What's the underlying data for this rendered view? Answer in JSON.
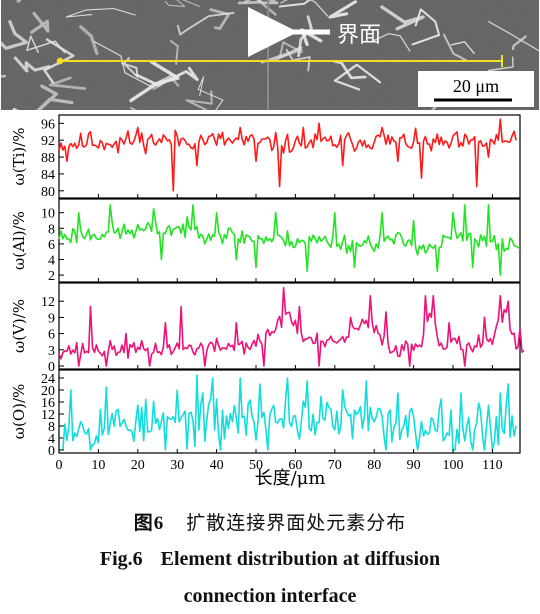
{
  "micrograph": {
    "interface_label": "界面",
    "scale_bar_label": "20 μm"
  },
  "shared_x_axis": {
    "label": "长度/μm",
    "range": [
      0,
      117
    ],
    "ticks": [
      0,
      10,
      20,
      30,
      40,
      50,
      60,
      70,
      80,
      90,
      100,
      110
    ]
  },
  "caption": {
    "cn_prefix": "图6",
    "cn_text": "扩散连接界面处元素分布",
    "en_line1_prefix": "Fig.6",
    "en_line1_text": "Element distribution at diffusion",
    "en_line2": "connection interface"
  },
  "colors": {
    "Ti": "#ff1a1a",
    "Al": "#22e422",
    "V": "#ee1177",
    "O": "#11dddd",
    "scan_line": "#f2e01c",
    "micrograph_bg": "#6e6e6e"
  },
  "chart_data": [
    {
      "type": "line",
      "element": "Ti",
      "ylabel": "ω(Ti)/%",
      "ylim": [
        79,
        97.5
      ],
      "yticks": [
        80,
        84,
        88,
        92,
        96
      ],
      "x_step": 0.5,
      "x_range": [
        0,
        116
      ],
      "noise": 2.2,
      "seed": 11,
      "anchors": [
        [
          0,
          91
        ],
        [
          20,
          92
        ],
        [
          40,
          92
        ],
        [
          60,
          91
        ],
        [
          80,
          92
        ],
        [
          100,
          91
        ],
        [
          116,
          92
        ]
      ],
      "spikes": [
        [
          2,
          87
        ],
        [
          8,
          94
        ],
        [
          15,
          89
        ],
        [
          20,
          95
        ],
        [
          29,
          80
        ],
        [
          35,
          86
        ],
        [
          46,
          95
        ],
        [
          50,
          87
        ],
        [
          56,
          81
        ],
        [
          62,
          95
        ],
        [
          66,
          96
        ],
        [
          72,
          86
        ],
        [
          82,
          95
        ],
        [
          86,
          87
        ],
        [
          92,
          83
        ],
        [
          101,
          94
        ],
        [
          106,
          81
        ],
        [
          109,
          88
        ],
        [
          112,
          97
        ],
        [
          115,
          93
        ]
      ]
    },
    {
      "type": "line",
      "element": "Al",
      "ylabel": "ω(Al)/%",
      "ylim": [
        1.5,
        11.5
      ],
      "yticks": [
        2,
        4,
        6,
        8,
        10
      ],
      "x_step": 0.5,
      "x_range": [
        0,
        117
      ],
      "noise": 1.1,
      "seed": 23,
      "anchors": [
        [
          0,
          7
        ],
        [
          15,
          7.5
        ],
        [
          30,
          8
        ],
        [
          45,
          7
        ],
        [
          55,
          6.5
        ],
        [
          65,
          6.5
        ],
        [
          75,
          6
        ],
        [
          85,
          6.5
        ],
        [
          95,
          5.5
        ],
        [
          100,
          7
        ],
        [
          110,
          6
        ],
        [
          117,
          6
        ]
      ],
      "spikes": [
        [
          5,
          10
        ],
        [
          13,
          11
        ],
        [
          24,
          10.5
        ],
        [
          26,
          4
        ],
        [
          34,
          11
        ],
        [
          40,
          10
        ],
        [
          45,
          4
        ],
        [
          50,
          3
        ],
        [
          55,
          10
        ],
        [
          63,
          2.5
        ],
        [
          70,
          10
        ],
        [
          75,
          3
        ],
        [
          82,
          10
        ],
        [
          90,
          9
        ],
        [
          96,
          2.5
        ],
        [
          100,
          10
        ],
        [
          103,
          11
        ],
        [
          105,
          3
        ],
        [
          109,
          11
        ],
        [
          112,
          2
        ]
      ]
    },
    {
      "type": "line",
      "element": "V",
      "ylabel": "ω(V)/%",
      "ylim": [
        0,
        15
      ],
      "yticks": [
        0,
        3,
        6,
        9,
        12
      ],
      "x_step": 0.5,
      "x_range": [
        0,
        118
      ],
      "noise": 1.4,
      "seed": 37,
      "anchors": [
        [
          0,
          3
        ],
        [
          20,
          3
        ],
        [
          40,
          3.5
        ],
        [
          50,
          4
        ],
        [
          55,
          7
        ],
        [
          58,
          10
        ],
        [
          62,
          5
        ],
        [
          70,
          4
        ],
        [
          78,
          8
        ],
        [
          85,
          3
        ],
        [
          92,
          4
        ],
        [
          94,
          11
        ],
        [
          97,
          4
        ],
        [
          105,
          4
        ],
        [
          110,
          5
        ],
        [
          113,
          10
        ],
        [
          116,
          3
        ],
        [
          118,
          3
        ]
      ],
      "spikes": [
        [
          5,
          0
        ],
        [
          8,
          11
        ],
        [
          12,
          0
        ],
        [
          17,
          6
        ],
        [
          23,
          0
        ],
        [
          27,
          8
        ],
        [
          31,
          11
        ],
        [
          37,
          0
        ],
        [
          45,
          8
        ],
        [
          52,
          0
        ],
        [
          57,
          14.5
        ],
        [
          61,
          11
        ],
        [
          66,
          0
        ],
        [
          74,
          9
        ],
        [
          79,
          13
        ],
        [
          83,
          10
        ],
        [
          89,
          0
        ],
        [
          93,
          13
        ],
        [
          95,
          13
        ],
        [
          99,
          8
        ],
        [
          103,
          0
        ],
        [
          108,
          9
        ],
        [
          112,
          13
        ],
        [
          114,
          12
        ],
        [
          117,
          7
        ]
      ]
    },
    {
      "type": "line",
      "element": "O",
      "ylabel": "ω(O)/%",
      "ylim": [
        0,
        26
      ],
      "yticks": [
        0,
        4,
        8,
        12,
        16,
        20,
        24
      ],
      "x_step": 0.5,
      "x_range": [
        1,
        116
      ],
      "noise": 7.0,
      "seed": 53,
      "anchors": [
        [
          1,
          8
        ],
        [
          20,
          9
        ],
        [
          30,
          9
        ],
        [
          40,
          10
        ],
        [
          60,
          11
        ],
        [
          80,
          9
        ],
        [
          100,
          8
        ],
        [
          116,
          9
        ]
      ],
      "spikes": [
        [
          3,
          20
        ],
        [
          8,
          0
        ],
        [
          12,
          21
        ],
        [
          20,
          15
        ],
        [
          27,
          0
        ],
        [
          30,
          20
        ],
        [
          35,
          25
        ],
        [
          39,
          24
        ],
        [
          41,
          0
        ],
        [
          46,
          24
        ],
        [
          51,
          22
        ],
        [
          53,
          0
        ],
        [
          58,
          24
        ],
        [
          63,
          23
        ],
        [
          72,
          20
        ],
        [
          78,
          23
        ],
        [
          83,
          0
        ],
        [
          86,
          19
        ],
        [
          91,
          0
        ],
        [
          97,
          17
        ],
        [
          102,
          19
        ],
        [
          105,
          0
        ],
        [
          108,
          0
        ],
        [
          110,
          0
        ],
        [
          112,
          19
        ],
        [
          114,
          22
        ]
      ]
    }
  ]
}
